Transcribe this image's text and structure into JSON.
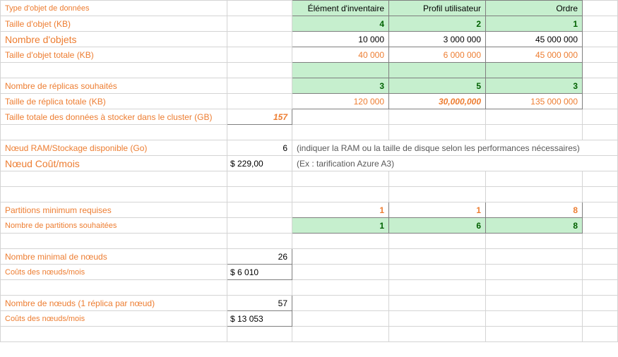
{
  "headers": {
    "col1": "Élément d'inventaire",
    "col2": "Profil utilisateur",
    "col3": "Ordre"
  },
  "rows": {
    "type": {
      "label": "Type d'objet de données"
    },
    "size": {
      "label": "Taille d'objet (KB)",
      "v1": "4",
      "v2": "2",
      "v3": "1"
    },
    "count": {
      "label": "Nombre d'objets",
      "v1": "10 000",
      "v2": "3 000 000",
      "v3": "45 000 000"
    },
    "totalSize": {
      "label": "Taille d'objet totale (KB)",
      "v1": "40 000",
      "v2": "6 000 000",
      "v3": "45 000 000"
    },
    "replicas": {
      "label": "Nombre de réplicas souhaités",
      "v1": "3",
      "v2": "5",
      "v3": "3"
    },
    "replicaSize": {
      "label": "Taille de réplica totale (KB)",
      "v1": "120 000",
      "v2": "30,000,000",
      "v3": "135 000 000"
    },
    "totalData": {
      "label": "Taille totale des données à stocker dans le cluster (GB)",
      "val": "157"
    },
    "ramNode": {
      "label": "Nœud RAM/Stockage disponible (Go)",
      "val": "6",
      "note": "(indiquer la RAM ou la taille de disque selon les performances nécessaires)"
    },
    "cost": {
      "label": "Nœud Coût/mois",
      "val": "$ 229,00",
      "note": "(Ex : tarification Azure A3)"
    },
    "minPart": {
      "label": "Partitions minimum requises",
      "v1": "1",
      "v2": "1",
      "v3": "8"
    },
    "desiredPart": {
      "label": "Nombre de partitions souhaitées",
      "v1": "1",
      "v2": "6",
      "v3": "8"
    },
    "minNodes": {
      "label": "Nombre minimal de nœuds",
      "val": "26"
    },
    "nodesCost1": {
      "label": "Coûts des nœuds/mois",
      "val": "$   6 010"
    },
    "nodes1rep": {
      "label": "Nombre de nœuds (1 réplica par nœud)",
      "val": "57"
    },
    "nodesCost2": {
      "label": "Coûts des nœuds/mois",
      "val": "$ 13 053"
    }
  },
  "colors": {
    "orange": "#ed7d31",
    "greenFill": "#c6efce",
    "greenText": "#006100",
    "gridLight": "#d4d4d4",
    "gridDark": "#7f7f7f"
  }
}
